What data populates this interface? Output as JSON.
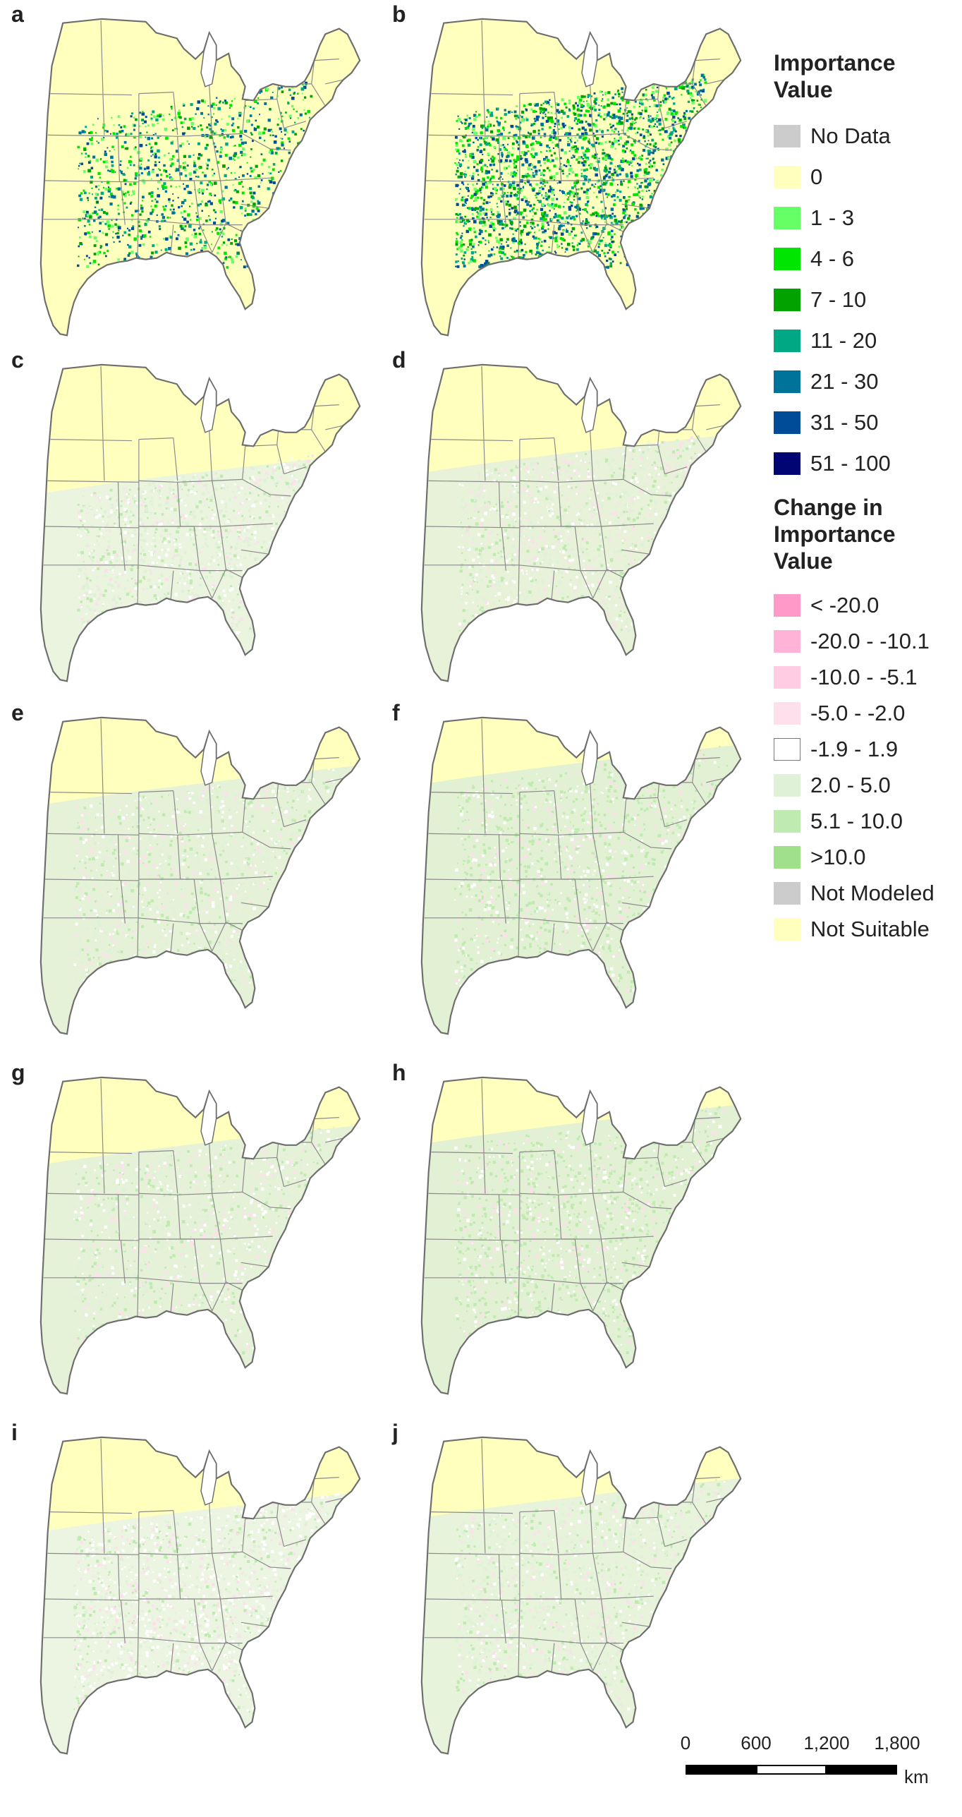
{
  "panels": [
    {
      "letter": "a",
      "mode": "iv1"
    },
    {
      "letter": "b",
      "mode": "iv2"
    },
    {
      "letter": "c",
      "mode": "ch1"
    },
    {
      "letter": "d",
      "mode": "ch2"
    },
    {
      "letter": "e",
      "mode": "ch3"
    },
    {
      "letter": "f",
      "mode": "ch4"
    },
    {
      "letter": "g",
      "mode": "ch3"
    },
    {
      "letter": "h",
      "mode": "ch4"
    },
    {
      "letter": "i",
      "mode": "ch5"
    },
    {
      "letter": "j",
      "mode": "ch6"
    }
  ],
  "legend_importance": {
    "title_line1": "Importance",
    "title_line2": "Value",
    "items": [
      {
        "label": "No Data",
        "color": "#cccccc"
      },
      {
        "label": "0",
        "color": "#ffffbe"
      },
      {
        "label": "1 - 3",
        "color": "#66ff66"
      },
      {
        "label": "4 - 6",
        "color": "#00e600"
      },
      {
        "label": "7 - 10",
        "color": "#00a300"
      },
      {
        "label": "11 - 20",
        "color": "#00a884"
      },
      {
        "label": "21 - 30",
        "color": "#00739b"
      },
      {
        "label": "31 - 50",
        "color": "#004c99"
      },
      {
        "label": "51 - 100",
        "color": "#000573"
      }
    ]
  },
  "legend_change": {
    "title_line1": "Change in",
    "title_line2": "Importance",
    "title_line3": "Value",
    "items": [
      {
        "label": "< -20.0",
        "color": "#ff99c8"
      },
      {
        "label": "-20.0 - -10.1",
        "color": "#ffb3d6"
      },
      {
        "label": "-10.0 - -5.1",
        "color": "#ffcce4"
      },
      {
        "label": "-5.0 - -2.0",
        "color": "#fde0ec"
      },
      {
        "label": "-1.9 - 1.9",
        "color": "#ffffff"
      },
      {
        "label": "2.0 - 5.0",
        "color": "#dff2d8"
      },
      {
        "label": "5.1 - 10.0",
        "color": "#bfeab0"
      },
      {
        "label": ">10.0",
        "color": "#a0e08a"
      },
      {
        "label": "Not Modeled",
        "color": "#cccccc"
      },
      {
        "label": "Not Suitable",
        "color": "#ffffbe"
      }
    ]
  },
  "scale_bar": {
    "ticks": [
      "0",
      "600",
      "1,200",
      "1,800"
    ],
    "unit": "km"
  },
  "colors": {
    "land": "#ffffbe",
    "outline": "#6e6e6e",
    "state_line": "#8a8a8a"
  }
}
